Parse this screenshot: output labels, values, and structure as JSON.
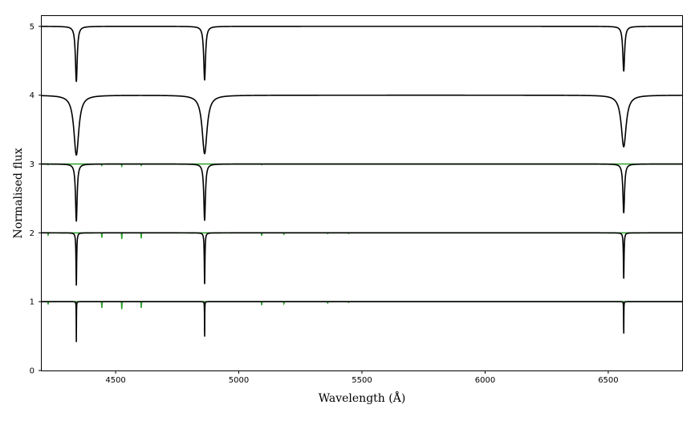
{
  "chart_data": {
    "type": "line",
    "title": "",
    "xlabel": "Wavelength (Å)",
    "ylabel": "Normalised flux",
    "xlim": [
      4200,
      6800
    ],
    "ylim": [
      0,
      5.15
    ],
    "xticks": [
      4500,
      5000,
      5500,
      6000,
      6500
    ],
    "yticks": [
      0,
      1,
      2,
      3,
      4,
      5
    ],
    "grid": false,
    "legend": "none",
    "line_centers": [
      4340.5,
      4861.3,
      6562.8
    ],
    "series": [
      {
        "color": "#000000",
        "role": "model",
        "offset": 5,
        "line_depths": [
          0.8,
          0.78,
          0.65
        ],
        "line_widths": [
          4.5,
          4.5,
          4.5
        ]
      },
      {
        "color": "#000000",
        "role": "model",
        "offset": 4,
        "line_depths": [
          0.87,
          0.85,
          0.75
        ],
        "line_widths": [
          12,
          12,
          12
        ]
      },
      {
        "color": "#000000",
        "role": "model",
        "offset": 3,
        "line_depths": [
          0.83,
          0.82,
          0.71
        ],
        "line_widths": [
          4,
          4,
          4
        ]
      },
      {
        "color": "#000000",
        "role": "model",
        "offset": 2,
        "line_depths": [
          0.76,
          0.75,
          0.67
        ],
        "line_widths": [
          1.6,
          1.6,
          1.6
        ]
      },
      {
        "color": "#000000",
        "role": "model",
        "offset": 1,
        "line_depths": [
          0.58,
          0.58,
          0.53
        ],
        "line_widths": [
          0.5,
          0.5,
          0.5
        ]
      },
      {
        "color": "#2ca02c",
        "role": "metal-lines",
        "offset": 3,
        "features": [
          [
            4226,
            0.01
          ],
          [
            4444,
            0.02
          ],
          [
            4525,
            0.03
          ],
          [
            4604,
            0.02
          ],
          [
            5093,
            0.01
          ]
        ]
      },
      {
        "color": "#2ca02c",
        "role": "metal-lines",
        "offset": 2,
        "features": [
          [
            4226,
            0.03
          ],
          [
            4444,
            0.07
          ],
          [
            4525,
            0.09
          ],
          [
            4604,
            0.08
          ],
          [
            5093,
            0.04
          ],
          [
            5183,
            0.02
          ],
          [
            5361,
            0.01
          ],
          [
            5446,
            0.01
          ]
        ]
      },
      {
        "color": "#2ca02c",
        "role": "metal-lines",
        "offset": 1,
        "features": [
          [
            4226,
            0.04
          ],
          [
            4444,
            0.09
          ],
          [
            4525,
            0.11
          ],
          [
            4604,
            0.09
          ],
          [
            5093,
            0.05
          ],
          [
            5183,
            0.03
          ],
          [
            5361,
            0.02
          ],
          [
            5446,
            0.01
          ]
        ]
      }
    ]
  }
}
